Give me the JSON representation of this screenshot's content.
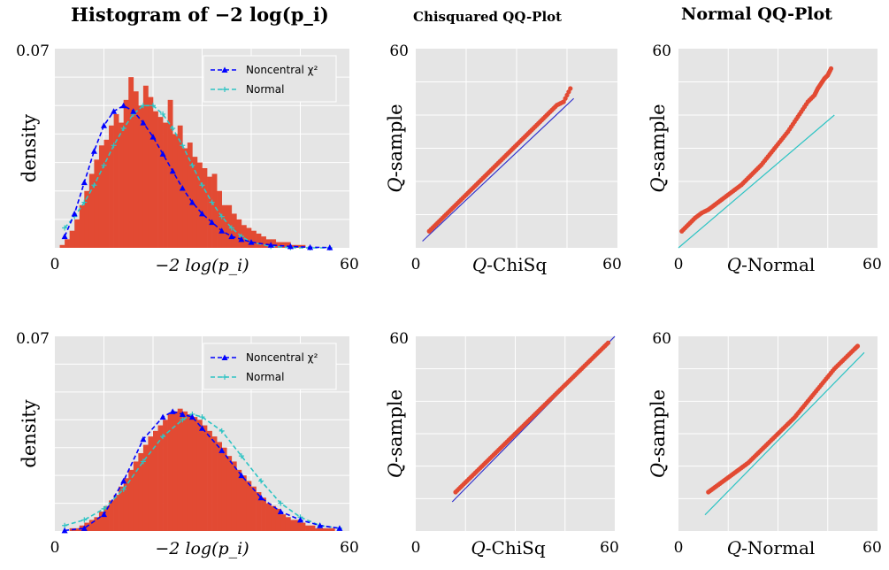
{
  "column_titles": [
    "Histogram of −2 log(p_i)",
    "Chisquared QQ-Plot",
    "Normal QQ-Plot"
  ],
  "colors": {
    "panel_bg": "#e5e5e5",
    "grid": "#ffffff",
    "histogram": "#e24a33",
    "noncentral": "#0000ff",
    "normal": "#2ec4c4",
    "qq_points": "#e24a33",
    "qq_line_chisq": "#3333cc",
    "qq_line_normal": "#2ec4c4"
  },
  "chart_data": [
    {
      "type": "bar",
      "panel": "row1-histogram",
      "xlabel": "−2 log(p_i)",
      "ylabel": "density",
      "xlim": [
        0,
        60
      ],
      "ylim": [
        0,
        0.07
      ],
      "x_tick_labels": [
        "0",
        "60"
      ],
      "y_tick_labels": [
        "0.07"
      ],
      "legend": [
        "Noncentral χ²",
        "Normal"
      ],
      "legend_position": "top-right",
      "histogram": {
        "bin_start": 0,
        "bin_width": 1,
        "values": [
          0.0,
          0.001,
          0.003,
          0.006,
          0.01,
          0.015,
          0.02,
          0.026,
          0.031,
          0.036,
          0.038,
          0.043,
          0.047,
          0.044,
          0.052,
          0.06,
          0.055,
          0.05,
          0.057,
          0.053,
          0.048,
          0.046,
          0.044,
          0.052,
          0.04,
          0.043,
          0.035,
          0.037,
          0.032,
          0.03,
          0.028,
          0.025,
          0.026,
          0.02,
          0.015,
          0.015,
          0.012,
          0.01,
          0.008,
          0.007,
          0.006,
          0.005,
          0.004,
          0.003,
          0.003,
          0.002,
          0.002,
          0.002,
          0.001,
          0.001,
          0.001,
          0.0,
          0.0,
          0.0,
          0.0,
          0.0,
          0.0,
          0.0,
          0.0,
          0.0
        ]
      },
      "series": [
        {
          "name": "Noncentral χ²",
          "x": [
            2,
            4,
            6,
            8,
            10,
            12,
            14,
            16,
            18,
            20,
            22,
            24,
            26,
            28,
            30,
            32,
            34,
            36,
            38,
            40,
            44,
            48,
            52,
            56
          ],
          "values": [
            0.004,
            0.012,
            0.023,
            0.034,
            0.043,
            0.048,
            0.05,
            0.048,
            0.044,
            0.039,
            0.033,
            0.027,
            0.021,
            0.016,
            0.012,
            0.009,
            0.006,
            0.004,
            0.003,
            0.002,
            0.001,
            0.0005,
            0.0002,
            0.0001
          ]
        },
        {
          "name": "Normal",
          "x": [
            2,
            4,
            6,
            8,
            10,
            12,
            14,
            16,
            18,
            20,
            22,
            24,
            26,
            28,
            30,
            32,
            34,
            36,
            38,
            40,
            44,
            48,
            52,
            56
          ],
          "values": [
            0.007,
            0.011,
            0.016,
            0.022,
            0.029,
            0.036,
            0.042,
            0.047,
            0.05,
            0.05,
            0.047,
            0.042,
            0.036,
            0.029,
            0.022,
            0.016,
            0.011,
            0.007,
            0.004,
            0.002,
            0.0005,
            0.0001,
            0.0,
            0.0
          ]
        }
      ]
    },
    {
      "type": "scatter",
      "panel": "row1-chisq-qq",
      "xlabel": "Q-ChiSq",
      "ylabel": "Q-sample",
      "xlim": [
        0,
        60
      ],
      "ylim": [
        0,
        60
      ],
      "x_tick_labels": [
        "0",
        "60"
      ],
      "y_tick_labels": [
        "60"
      ],
      "reference_line": {
        "x": [
          2,
          47
        ],
        "y": [
          2,
          45
        ]
      },
      "points": {
        "x": [
          4,
          6,
          8,
          10,
          12,
          14,
          16,
          18,
          20,
          22,
          24,
          26,
          28,
          30,
          32,
          34,
          36,
          38,
          40,
          42,
          44,
          46
        ],
        "y": [
          5,
          7,
          9,
          11,
          13,
          15,
          17,
          19,
          21,
          23,
          25,
          27,
          29,
          31,
          33,
          35,
          37,
          39,
          41,
          43,
          44,
          48
        ]
      }
    },
    {
      "type": "scatter",
      "panel": "row1-normal-qq",
      "xlabel": "Q-Normal",
      "ylabel": "Q-sample",
      "xlim": [
        0,
        60
      ],
      "ylim": [
        0,
        60
      ],
      "x_tick_labels": [
        "0",
        "60"
      ],
      "y_tick_labels": [
        "60"
      ],
      "reference_line": {
        "x": [
          0,
          47
        ],
        "y": [
          0,
          40
        ]
      },
      "points": {
        "x": [
          1,
          3,
          5,
          7,
          9,
          11,
          13,
          15,
          17,
          19,
          21,
          23,
          25,
          27,
          29,
          31,
          33,
          35,
          37,
          39,
          41,
          42,
          43,
          44,
          45,
          46
        ],
        "y": [
          5,
          7,
          9,
          10.5,
          11.5,
          13,
          14.5,
          16,
          17.5,
          19,
          21,
          23,
          25,
          27.5,
          30,
          32.5,
          35,
          38,
          41,
          44,
          46,
          48,
          49.5,
          51,
          52,
          54
        ]
      }
    },
    {
      "type": "bar",
      "panel": "row2-histogram",
      "xlabel": "−2 log(p_i)",
      "ylabel": "density",
      "xlim": [
        0,
        60
      ],
      "ylim": [
        0,
        0.07
      ],
      "x_tick_labels": [
        "0",
        "60"
      ],
      "y_tick_labels": [
        "0.07"
      ],
      "legend": [
        "Noncentral χ²",
        "Normal"
      ],
      "legend_position": "top-right",
      "histogram": {
        "bin_start": 0,
        "bin_width": 1,
        "values": [
          0.0,
          0.0,
          0.0,
          0.001,
          0.001,
          0.002,
          0.003,
          0.004,
          0.005,
          0.007,
          0.009,
          0.011,
          0.013,
          0.016,
          0.019,
          0.022,
          0.025,
          0.028,
          0.031,
          0.034,
          0.036,
          0.038,
          0.04,
          0.042,
          0.043,
          0.044,
          0.043,
          0.042,
          0.041,
          0.04,
          0.038,
          0.036,
          0.034,
          0.032,
          0.03,
          0.027,
          0.025,
          0.022,
          0.02,
          0.018,
          0.016,
          0.014,
          0.012,
          0.01,
          0.009,
          0.008,
          0.006,
          0.005,
          0.004,
          0.004,
          0.003,
          0.002,
          0.002,
          0.001,
          0.001,
          0.001,
          0.001,
          0.0,
          0.0,
          0.0
        ]
      },
      "series": [
        {
          "name": "Noncentral χ²",
          "x": [
            2,
            6,
            10,
            14,
            18,
            22,
            24,
            26,
            28,
            30,
            34,
            38,
            42,
            46,
            50,
            54,
            58
          ],
          "values": [
            0.0002,
            0.001,
            0.006,
            0.018,
            0.033,
            0.041,
            0.043,
            0.042,
            0.041,
            0.037,
            0.029,
            0.02,
            0.012,
            0.007,
            0.004,
            0.002,
            0.001
          ]
        },
        {
          "name": "Normal",
          "x": [
            2,
            6,
            10,
            14,
            18,
            22,
            26,
            28,
            30,
            34,
            38,
            42,
            46,
            50,
            54,
            58
          ],
          "values": [
            0.002,
            0.004,
            0.008,
            0.015,
            0.025,
            0.034,
            0.04,
            0.042,
            0.041,
            0.036,
            0.027,
            0.018,
            0.01,
            0.005,
            0.002,
            0.001
          ]
        }
      ]
    },
    {
      "type": "scatter",
      "panel": "row2-chisq-qq",
      "xlabel": "Q-ChiSq",
      "ylabel": "Q-sample",
      "xlim": [
        0,
        60
      ],
      "ylim": [
        0,
        60
      ],
      "x_tick_labels": [
        "0",
        "60"
      ],
      "y_tick_labels": [
        "60"
      ],
      "reference_line": {
        "x": [
          11,
          60
        ],
        "y": [
          9,
          60
        ]
      },
      "points": {
        "x": [
          12,
          14,
          16,
          18,
          20,
          22,
          24,
          26,
          28,
          30,
          32,
          34,
          36,
          38,
          40,
          42,
          44,
          46,
          48,
          50,
          52,
          54,
          56,
          58
        ],
        "y": [
          12,
          14,
          16,
          18,
          20,
          22,
          24,
          26,
          28,
          30,
          32,
          34,
          36,
          38,
          40,
          42,
          44,
          46,
          48,
          50,
          52,
          54,
          56,
          58
        ]
      }
    },
    {
      "type": "scatter",
      "panel": "row2-normal-qq",
      "xlabel": "Q-Normal",
      "ylabel": "Q-sample",
      "xlim": [
        0,
        60
      ],
      "ylim": [
        0,
        60
      ],
      "x_tick_labels": [
        "0",
        "60"
      ],
      "y_tick_labels": [
        "60"
      ],
      "reference_line": {
        "x": [
          8,
          56
        ],
        "y": [
          5,
          55
        ]
      },
      "points": {
        "x": [
          9,
          11,
          13,
          15,
          17,
          19,
          21,
          23,
          25,
          27,
          29,
          31,
          33,
          35,
          37,
          39,
          41,
          43,
          45,
          47,
          49,
          51,
          53,
          54
        ],
        "y": [
          12,
          13.5,
          15,
          16.5,
          18,
          19.5,
          21,
          23,
          25,
          27,
          29,
          31,
          33,
          35,
          37.5,
          40,
          42.5,
          45,
          47.5,
          50,
          52,
          54,
          56,
          57
        ]
      }
    }
  ]
}
